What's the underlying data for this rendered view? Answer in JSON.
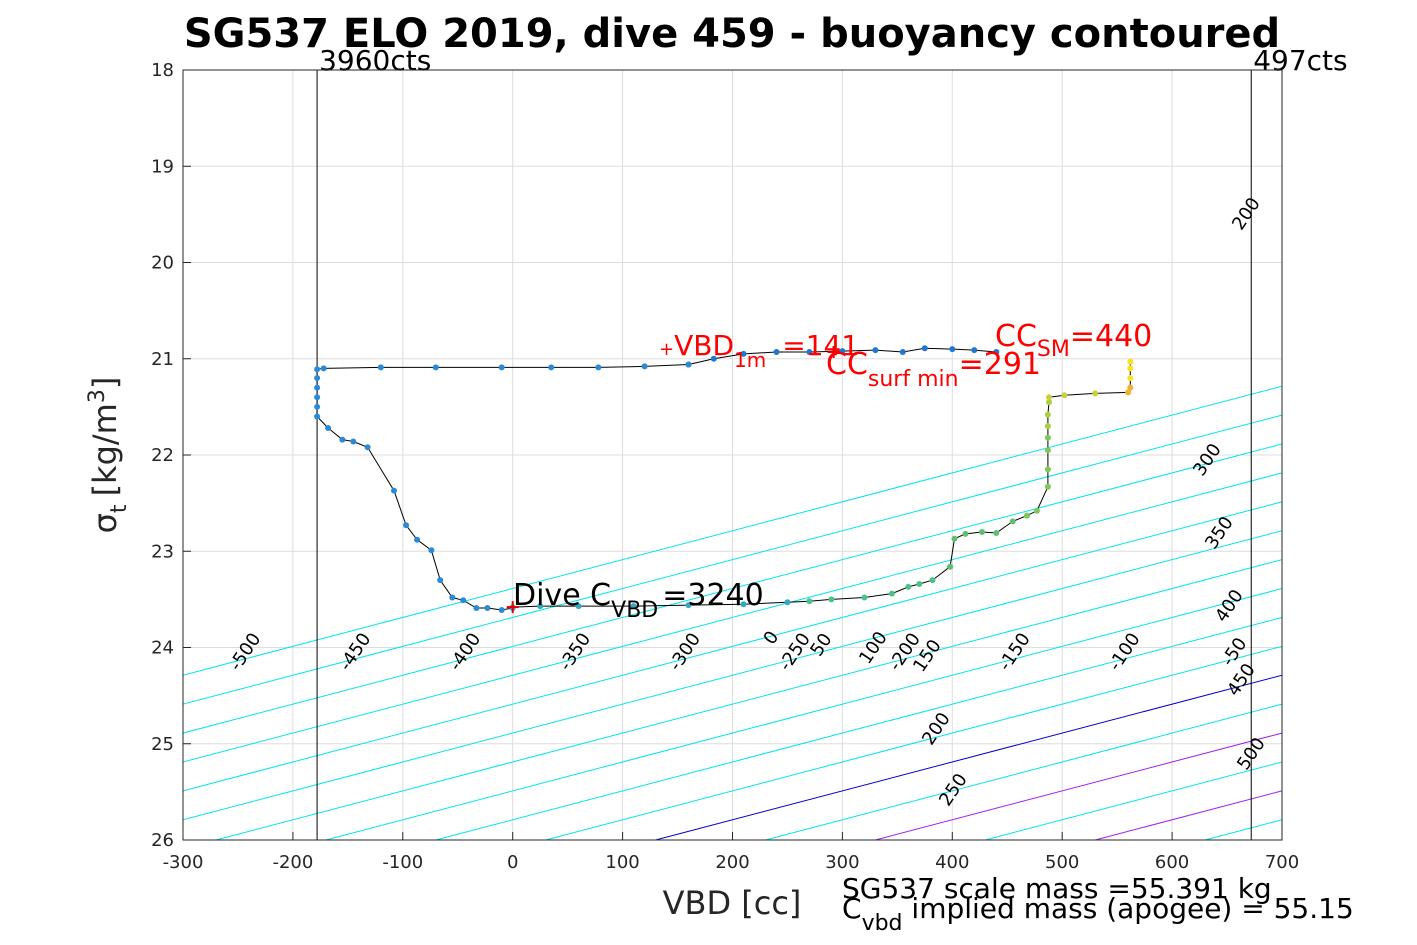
{
  "chart_data": {
    "type": "scatter",
    "title": "SG537 ELO 2019, dive 459 - buoyancy contoured",
    "xlabel": "VBD [cc]",
    "ylabel": {
      "main": "σ",
      "sub": "t",
      "unit": "[kg/m",
      "sup": "3",
      "close": "]"
    },
    "xlim": [
      -300,
      700
    ],
    "ylim": [
      18,
      26
    ],
    "y_reversed": true,
    "grid": true,
    "xticks": [
      "-300",
      "-200",
      "-100",
      "0",
      "100",
      "200",
      "300",
      "400",
      "500",
      "600",
      "700"
    ],
    "yticks": [
      "18",
      "19",
      "20",
      "21",
      "22",
      "23",
      "24",
      "25",
      "26"
    ],
    "vlines": [
      {
        "x": -178,
        "label": "3960cts"
      },
      {
        "x": 672,
        "label": "497cts"
      }
    ],
    "contour_slope_cc_per_density": 333,
    "contours": {
      "zero_line_vbd_at_sigma26": 130,
      "levels": [
        -500,
        -450,
        -400,
        -350,
        -300,
        -250,
        -200,
        -150,
        -100,
        -50,
        0,
        50,
        100,
        150,
        200,
        250,
        300,
        350,
        400,
        450,
        500
      ],
      "colors": {
        "neutral": "#00e5ee",
        "zero": "#0000d0",
        "highlight": "#a020f0"
      },
      "highlight_levels": [
        100,
        200
      ]
    },
    "upper_labels": [
      "-500",
      "-450",
      "-400",
      "-350",
      "-300",
      "-250",
      "-200",
      "-150",
      "-100",
      "-50",
      "0",
      "50",
      "100",
      "150",
      "200"
    ],
    "lower_labels": [
      "-500",
      "-450",
      "-400",
      "-350",
      "-300",
      "-250",
      "-200",
      "-150",
      "-100",
      "-50",
      "0",
      "50",
      "100",
      "150",
      "200",
      "250"
    ],
    "right_labels": [
      "300",
      "350",
      "400",
      "450",
      "500"
    ],
    "dive_track": {
      "descent": [
        [
          160,
          21.06
        ],
        [
          183,
          21.0
        ],
        [
          210,
          20.95
        ],
        [
          240,
          20.93
        ],
        [
          270,
          20.93
        ],
        [
          300,
          20.92
        ],
        [
          330,
          20.91
        ],
        [
          355,
          20.93
        ],
        [
          375,
          20.89
        ],
        [
          400,
          20.9
        ],
        [
          420,
          20.91
        ],
        [
          440,
          20.93
        ]
      ],
      "climb_left": [
        [
          160,
          21.06
        ],
        [
          120,
          21.08
        ],
        [
          78,
          21.09
        ],
        [
          35,
          21.09
        ],
        [
          -10,
          21.09
        ],
        [
          -70,
          21.09
        ],
        [
          -120,
          21.09
        ],
        [
          -172,
          21.1
        ],
        [
          -178,
          21.11
        ],
        [
          -178,
          21.2
        ],
        [
          -178,
          21.3
        ],
        [
          -178,
          21.4
        ],
        [
          -178,
          21.5
        ],
        [
          -178,
          21.6
        ],
        [
          -168,
          21.72
        ],
        [
          -155,
          21.84
        ],
        [
          -145,
          21.86
        ],
        [
          -132,
          21.92
        ],
        [
          -108,
          22.37
        ],
        [
          -97,
          22.73
        ],
        [
          -87,
          22.88
        ],
        [
          -74,
          22.99
        ],
        [
          -66,
          23.3
        ],
        [
          -55,
          23.48
        ],
        [
          -45,
          23.51
        ],
        [
          -33,
          23.59
        ],
        [
          -23,
          23.59
        ],
        [
          -10,
          23.61
        ],
        [
          0,
          23.59
        ]
      ],
      "climb_bottom": [
        [
          0,
          23.58
        ],
        [
          25,
          23.57
        ],
        [
          60,
          23.57
        ],
        [
          110,
          23.57
        ],
        [
          160,
          23.56
        ],
        [
          210,
          23.55
        ],
        [
          250,
          23.53
        ],
        [
          270,
          23.52
        ],
        [
          290,
          23.5
        ],
        [
          320,
          23.48
        ],
        [
          345,
          23.44
        ],
        [
          360,
          23.37
        ],
        [
          370,
          23.34
        ],
        [
          382,
          23.3
        ],
        [
          398,
          23.16
        ]
      ],
      "climb_right": [
        [
          398,
          23.16
        ],
        [
          402,
          22.87
        ],
        [
          412,
          22.82
        ],
        [
          427,
          22.8
        ],
        [
          440,
          22.81
        ],
        [
          455,
          22.69
        ],
        [
          468,
          22.63
        ],
        [
          477,
          22.58
        ],
        [
          487,
          22.33
        ],
        [
          487,
          22.15
        ],
        [
          487,
          21.95
        ],
        [
          487,
          21.82
        ],
        [
          487,
          21.7
        ],
        [
          487,
          21.58
        ],
        [
          488,
          21.45
        ]
      ],
      "climb_top": [
        [
          488,
          21.4
        ],
        [
          502,
          21.38
        ],
        [
          530,
          21.36
        ],
        [
          560,
          21.35
        ],
        [
          562,
          21.3
        ],
        [
          562,
          21.2
        ],
        [
          562,
          21.1
        ],
        [
          562,
          21.03
        ]
      ]
    },
    "markers": [
      {
        "name": "surface-min",
        "x": 292,
        "y": 20.93
      },
      {
        "name": "dive-cvbd",
        "x": 0,
        "y": 23.58
      }
    ],
    "annotations": {
      "vbd_1m": {
        "main": "VBD",
        "sub": "1m",
        "eq": "=141",
        "prefix": "+"
      },
      "cc_sm": {
        "main": "CC",
        "sub": "SM",
        "eq": "=440"
      },
      "cc_surfmin": {
        "main": "CC",
        "sub": "surf min",
        "eq": "=291"
      },
      "dive_c": {
        "main": "Dive C",
        "sub": "VBD",
        "eq": "=3240"
      }
    },
    "footer": {
      "line1": "SG537 scale mass =55.391 kg",
      "line2_main": "C",
      "line2_sub": "vbd",
      "line2_rest": " implied mass (apogee) = 55.15"
    }
  }
}
